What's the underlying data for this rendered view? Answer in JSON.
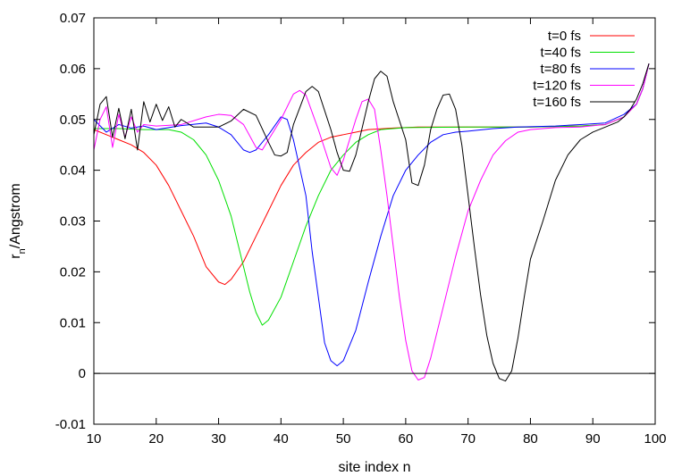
{
  "chart_data": {
    "type": "line",
    "title": "",
    "xlabel": "site index n",
    "ylabel_main": "r",
    "ylabel_sub": "n",
    "ylabel_rest": "/Angstrom",
    "xlim": [
      10,
      100
    ],
    "ylim": [
      -0.01,
      0.07
    ],
    "x_ticks": [
      10,
      20,
      30,
      40,
      50,
      60,
      70,
      80,
      90,
      100
    ],
    "y_ticks": [
      -0.01,
      0,
      0.01,
      0.02,
      0.03,
      0.04,
      0.05,
      0.06,
      0.07
    ],
    "y_tick_labels": [
      "-0.01",
      "0",
      "0.01",
      "0.02",
      "0.03",
      "0.04",
      "0.05",
      "0.06",
      "0.07"
    ],
    "grid": false,
    "zero_line": true,
    "legend_position": "top-right",
    "series": [
      {
        "name": "t=0 fs",
        "color": "#ff0000",
        "points": [
          [
            10,
            0.048
          ],
          [
            12,
            0.047
          ],
          [
            14,
            0.046
          ],
          [
            16,
            0.045
          ],
          [
            18,
            0.0435
          ],
          [
            20,
            0.041
          ],
          [
            22,
            0.037
          ],
          [
            24,
            0.032
          ],
          [
            26,
            0.027
          ],
          [
            28,
            0.021
          ],
          [
            30,
            0.018
          ],
          [
            31,
            0.0175
          ],
          [
            32,
            0.0185
          ],
          [
            34,
            0.022
          ],
          [
            36,
            0.027
          ],
          [
            38,
            0.032
          ],
          [
            40,
            0.037
          ],
          [
            42,
            0.041
          ],
          [
            44,
            0.0435
          ],
          [
            46,
            0.0455
          ],
          [
            48,
            0.0465
          ],
          [
            50,
            0.047
          ],
          [
            52,
            0.0475
          ],
          [
            54,
            0.048
          ],
          [
            58,
            0.0483
          ],
          [
            62,
            0.0485
          ],
          [
            70,
            0.0485
          ],
          [
            80,
            0.0485
          ],
          [
            88,
            0.0487
          ],
          [
            92,
            0.049
          ],
          [
            95,
            0.0505
          ],
          [
            97,
            0.053
          ],
          [
            98,
            0.056
          ],
          [
            99,
            0.061
          ]
        ]
      },
      {
        "name": "t=40 fs",
        "color": "#00e000",
        "points": [
          [
            10,
            0.0482
          ],
          [
            14,
            0.0482
          ],
          [
            18,
            0.048
          ],
          [
            22,
            0.048
          ],
          [
            24,
            0.0475
          ],
          [
            26,
            0.046
          ],
          [
            28,
            0.043
          ],
          [
            30,
            0.038
          ],
          [
            32,
            0.031
          ],
          [
            34,
            0.021
          ],
          [
            35,
            0.016
          ],
          [
            36,
            0.012
          ],
          [
            37,
            0.0095
          ],
          [
            38,
            0.0105
          ],
          [
            40,
            0.015
          ],
          [
            42,
            0.022
          ],
          [
            44,
            0.029
          ],
          [
            46,
            0.035
          ],
          [
            48,
            0.04
          ],
          [
            50,
            0.043
          ],
          [
            52,
            0.0455
          ],
          [
            54,
            0.047
          ],
          [
            56,
            0.048
          ],
          [
            60,
            0.0484
          ],
          [
            70,
            0.0485
          ],
          [
            80,
            0.0485
          ],
          [
            88,
            0.0487
          ],
          [
            92,
            0.049
          ],
          [
            95,
            0.0505
          ],
          [
            97,
            0.053
          ],
          [
            98,
            0.056
          ],
          [
            99,
            0.061
          ]
        ]
      },
      {
        "name": "t=80 fs",
        "color": "#0000ff",
        "points": [
          [
            10,
            0.05
          ],
          [
            12,
            0.0475
          ],
          [
            14,
            0.049
          ],
          [
            16,
            0.0483
          ],
          [
            18,
            0.0487
          ],
          [
            20,
            0.048
          ],
          [
            24,
            0.0488
          ],
          [
            28,
            0.0493
          ],
          [
            30,
            0.0485
          ],
          [
            32,
            0.047
          ],
          [
            34,
            0.044
          ],
          [
            35,
            0.0435
          ],
          [
            36,
            0.044
          ],
          [
            38,
            0.047
          ],
          [
            40,
            0.0505
          ],
          [
            41,
            0.05
          ],
          [
            42,
            0.046
          ],
          [
            44,
            0.035
          ],
          [
            45,
            0.024
          ],
          [
            46,
            0.015
          ],
          [
            47,
            0.006
          ],
          [
            48,
            0.0025
          ],
          [
            49,
            0.0015
          ],
          [
            50,
            0.0025
          ],
          [
            52,
            0.0085
          ],
          [
            54,
            0.018
          ],
          [
            56,
            0.027
          ],
          [
            58,
            0.035
          ],
          [
            60,
            0.04
          ],
          [
            62,
            0.043
          ],
          [
            64,
            0.0455
          ],
          [
            66,
            0.047
          ],
          [
            68,
            0.0475
          ],
          [
            70,
            0.0477
          ],
          [
            74,
            0.0482
          ],
          [
            78,
            0.0485
          ],
          [
            84,
            0.0487
          ],
          [
            88,
            0.049
          ],
          [
            92,
            0.0493
          ],
          [
            95,
            0.051
          ],
          [
            97,
            0.053
          ],
          [
            98,
            0.056
          ],
          [
            99,
            0.061
          ]
        ]
      },
      {
        "name": "t=120 fs",
        "color": "#ff00ff",
        "points": [
          [
            10,
            0.044
          ],
          [
            11,
            0.05
          ],
          [
            12,
            0.0525
          ],
          [
            13,
            0.0445
          ],
          [
            14,
            0.051
          ],
          [
            15,
            0.0465
          ],
          [
            16,
            0.0505
          ],
          [
            17,
            0.0475
          ],
          [
            18,
            0.049
          ],
          [
            20,
            0.0487
          ],
          [
            24,
            0.049
          ],
          [
            28,
            0.0505
          ],
          [
            30,
            0.051
          ],
          [
            32,
            0.0508
          ],
          [
            34,
            0.049
          ],
          [
            36,
            0.0445
          ],
          [
            37,
            0.044
          ],
          [
            38,
            0.046
          ],
          [
            40,
            0.05
          ],
          [
            42,
            0.055
          ],
          [
            43,
            0.0557
          ],
          [
            44,
            0.0548
          ],
          [
            46,
            0.048
          ],
          [
            48,
            0.0405
          ],
          [
            49,
            0.039
          ],
          [
            50,
            0.042
          ],
          [
            52,
            0.05
          ],
          [
            53,
            0.0535
          ],
          [
            54,
            0.054
          ],
          [
            55,
            0.052
          ],
          [
            56,
            0.044
          ],
          [
            57,
            0.035
          ],
          [
            58,
            0.025
          ],
          [
            59,
            0.015
          ],
          [
            60,
            0.0065
          ],
          [
            61,
            0.0005
          ],
          [
            62,
            -0.0013
          ],
          [
            63,
            -0.0008
          ],
          [
            64,
            0.003
          ],
          [
            66,
            0.013
          ],
          [
            68,
            0.023
          ],
          [
            70,
            0.032
          ],
          [
            72,
            0.038
          ],
          [
            74,
            0.043
          ],
          [
            76,
            0.0458
          ],
          [
            78,
            0.0475
          ],
          [
            80,
            0.048
          ],
          [
            84,
            0.0484
          ],
          [
            88,
            0.0485
          ],
          [
            92,
            0.049
          ],
          [
            95,
            0.0505
          ],
          [
            97,
            0.053
          ],
          [
            98,
            0.056
          ],
          [
            99,
            0.061
          ]
        ]
      },
      {
        "name": "t=160 fs",
        "color": "#000000",
        "points": [
          [
            10,
            0.047
          ],
          [
            11,
            0.053
          ],
          [
            12,
            0.0545
          ],
          [
            13,
            0.0465
          ],
          [
            14,
            0.0522
          ],
          [
            15,
            0.0462
          ],
          [
            16,
            0.052
          ],
          [
            17,
            0.044
          ],
          [
            18,
            0.0535
          ],
          [
            19,
            0.0495
          ],
          [
            20,
            0.053
          ],
          [
            21,
            0.0498
          ],
          [
            22,
            0.0525
          ],
          [
            23,
            0.0485
          ],
          [
            24,
            0.05
          ],
          [
            26,
            0.0485
          ],
          [
            28,
            0.0485
          ],
          [
            30,
            0.0485
          ],
          [
            32,
            0.0497
          ],
          [
            34,
            0.052
          ],
          [
            36,
            0.0508
          ],
          [
            38,
            0.0455
          ],
          [
            39,
            0.043
          ],
          [
            40,
            0.0428
          ],
          [
            41,
            0.0435
          ],
          [
            42,
            0.049
          ],
          [
            44,
            0.0555
          ],
          [
            45,
            0.0565
          ],
          [
            46,
            0.0555
          ],
          [
            48,
            0.048
          ],
          [
            49,
            0.0435
          ],
          [
            50,
            0.04
          ],
          [
            51,
            0.0398
          ],
          [
            52,
            0.043
          ],
          [
            54,
            0.0535
          ],
          [
            55,
            0.058
          ],
          [
            56,
            0.0595
          ],
          [
            57,
            0.0585
          ],
          [
            58,
            0.0535
          ],
          [
            60,
            0.046
          ],
          [
            61,
            0.0375
          ],
          [
            62,
            0.037
          ],
          [
            63,
            0.041
          ],
          [
            64,
            0.048
          ],
          [
            65,
            0.052
          ],
          [
            66,
            0.0548
          ],
          [
            67,
            0.055
          ],
          [
            68,
            0.052
          ],
          [
            69,
            0.045
          ],
          [
            70,
            0.035
          ],
          [
            71,
            0.025
          ],
          [
            72,
            0.0155
          ],
          [
            73,
            0.0075
          ],
          [
            74,
            0.002
          ],
          [
            75,
            -0.001
          ],
          [
            76,
            -0.0015
          ],
          [
            77,
            0.0005
          ],
          [
            78,
            0.007
          ],
          [
            79,
            0.015
          ],
          [
            80,
            0.0225
          ],
          [
            82,
            0.03
          ],
          [
            84,
            0.038
          ],
          [
            86,
            0.043
          ],
          [
            88,
            0.046
          ],
          [
            90,
            0.0475
          ],
          [
            92,
            0.0485
          ],
          [
            94,
            0.0495
          ],
          [
            95,
            0.0505
          ],
          [
            96,
            0.052
          ],
          [
            97,
            0.054
          ],
          [
            98,
            0.057
          ],
          [
            99,
            0.061
          ]
        ]
      }
    ]
  }
}
